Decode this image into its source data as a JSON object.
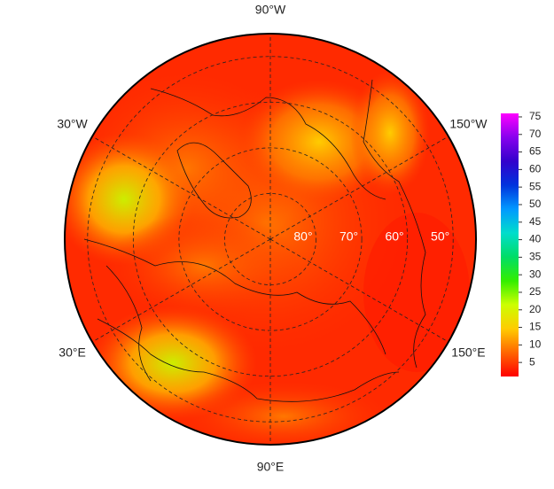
{
  "chart_data": {
    "type": "polar-map",
    "lat_lim": [
      45,
      90
    ],
    "meridians": [
      {
        "value": -90,
        "label": "90°W"
      },
      {
        "value": -30,
        "label": "30°W"
      },
      {
        "value": -150,
        "label": "150°W"
      },
      {
        "value": 30,
        "label": "30°E"
      },
      {
        "value": 150,
        "label": "150°E"
      },
      {
        "value": 90,
        "label": "90°E"
      }
    ],
    "parallels": [
      {
        "value": 80,
        "label": "80°"
      },
      {
        "value": 70,
        "label": "70°"
      },
      {
        "value": 60,
        "label": "60°"
      },
      {
        "value": 50,
        "label": "50°"
      }
    ],
    "colorbar": {
      "lim": [
        1,
        76
      ],
      "ticks": [
        5,
        10,
        15,
        20,
        25,
        30,
        35,
        40,
        45,
        50,
        55,
        60,
        65,
        70,
        75
      ],
      "colors": [
        "#ff0000",
        "#ff6600",
        "#ffcc00",
        "#ccff00",
        "#33ee00",
        "#00dd66",
        "#00ddcc",
        "#0099ff",
        "#0033dd",
        "#3300cc",
        "#8800ee",
        "#ff00ff"
      ]
    }
  }
}
